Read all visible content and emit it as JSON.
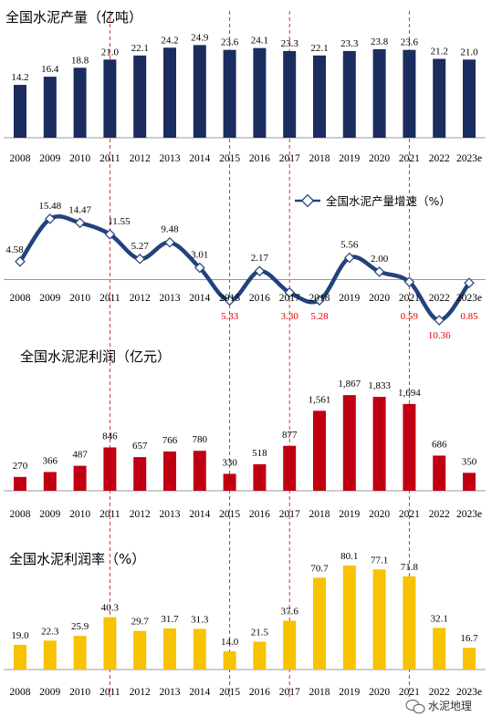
{
  "colors": {
    "production": "#1a2d5e",
    "growth_line": "#22427a",
    "profit": "#c00012",
    "margin": "#f7c200",
    "negative_label": "#e00000",
    "guide_line": "#d21c1c"
  },
  "watermark": {
    "icon": "wechat-icon",
    "text": "水泥地理"
  },
  "chart_data": [
    {
      "id": "production",
      "type": "bar",
      "title": "全国水泥产量（亿吨）",
      "categories": [
        "2008",
        "2009",
        "2010",
        "2011",
        "2012",
        "2013",
        "2014",
        "2015",
        "2016",
        "2017",
        "2018",
        "2019",
        "2020",
        "2021",
        "2022",
        "2023e"
      ],
      "values": [
        14.2,
        16.4,
        18.8,
        21.0,
        22.1,
        24.2,
        24.9,
        23.6,
        24.1,
        23.3,
        22.1,
        23.3,
        23.8,
        23.6,
        21.2,
        21.0
      ],
      "labels": [
        "14.2",
        "16.4",
        "18.8",
        "21.0",
        "22.1",
        "24.2",
        "24.9",
        "23.6",
        "24.1",
        "23.3",
        "22.1",
        "23.3",
        "23.8",
        "23.6",
        "21.2",
        "21.0"
      ],
      "color": "#1a2d5e"
    },
    {
      "id": "growth",
      "type": "line",
      "legend": "全国水泥产量增速（%）",
      "legend_position": "top-right",
      "categories": [
        "2008",
        "2009",
        "2010",
        "2011",
        "2012",
        "2013",
        "2014",
        "2015",
        "2016",
        "2017",
        "2018",
        "2019",
        "2020",
        "2021",
        "2022",
        "2023e"
      ],
      "values": [
        4.58,
        15.48,
        14.47,
        11.55,
        5.27,
        9.48,
        3.01,
        -5.33,
        2.17,
        -3.3,
        -5.28,
        5.56,
        2.0,
        -0.59,
        -10.36,
        -0.85
      ],
      "labels": [
        "4.58",
        "15.48",
        "14.47",
        "11.55",
        "5.27",
        "9.48",
        "3.01",
        "5.33",
        "2.17",
        "3.30",
        "5.28",
        "5.56",
        "2.00",
        "0.59",
        "10.36",
        "0.85"
      ],
      "color": "#22427a"
    },
    {
      "id": "profit",
      "type": "bar",
      "title": "全国水泥泥利润（亿元）",
      "categories": [
        "2008",
        "2009",
        "2010",
        "2011",
        "2012",
        "2013",
        "2014",
        "2015",
        "2016",
        "2017",
        "2018",
        "2019",
        "2020",
        "2021",
        "2022",
        "2023e"
      ],
      "values": [
        270,
        366,
        487,
        846,
        657,
        766,
        780,
        330,
        518,
        877,
        1561,
        1867,
        1833,
        1694,
        686,
        350
      ],
      "labels": [
        "270",
        "366",
        "487",
        "846",
        "657",
        "766",
        "780",
        "330",
        "518",
        "877",
        "1,561",
        "1,867",
        "1,833",
        "1,694",
        "686",
        "350"
      ],
      "color": "#c00012"
    },
    {
      "id": "margin",
      "type": "bar",
      "title": "全国水泥利润率（%）",
      "categories": [
        "2008",
        "2009",
        "2010",
        "2011",
        "2012",
        "2013",
        "2014",
        "2015",
        "2016",
        "2017",
        "2018",
        "2019",
        "2020",
        "2021",
        "2022",
        "2023e"
      ],
      "values": [
        19.0,
        22.3,
        25.9,
        40.3,
        29.7,
        31.7,
        31.3,
        14.0,
        21.5,
        37.6,
        70.7,
        80.1,
        77.1,
        71.8,
        32.1,
        16.7
      ],
      "labels": [
        "19.0",
        "22.3",
        "25.9",
        "40.3",
        "29.7",
        "31.7",
        "31.3",
        "14.0",
        "21.5",
        "37.6",
        "70.7",
        "80.1",
        "77.1",
        "71.8",
        "32.1",
        "16.7"
      ],
      "color": "#f7c200"
    }
  ],
  "highlight_years": [
    "2011",
    "2015",
    "2017",
    "2021"
  ]
}
